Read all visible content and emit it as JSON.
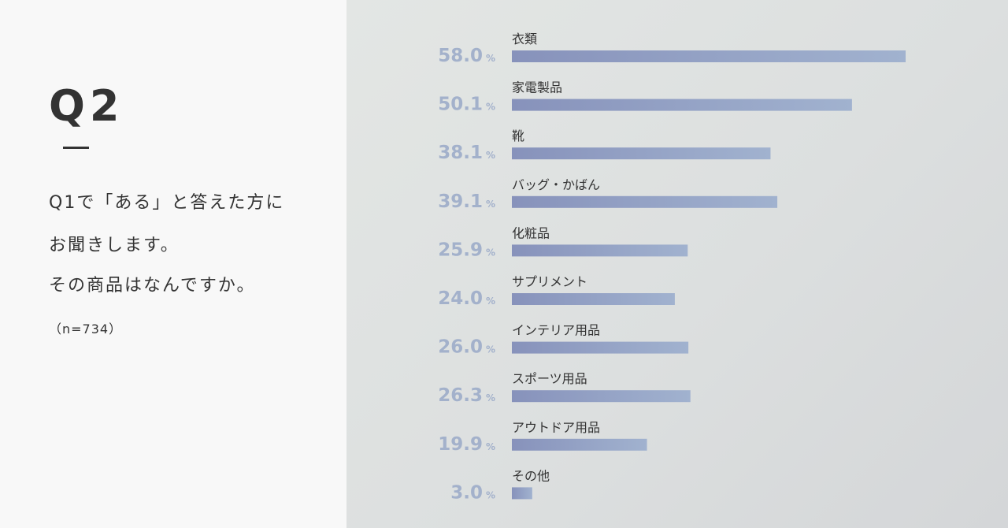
{
  "question": {
    "title": "Q2",
    "line1": "Q1で「ある」と答えた方に",
    "line2": "お聞きします。",
    "line3": "その商品はなんですか。",
    "sample": "（n=734）"
  },
  "colors": {
    "bar_start": "#8792bb",
    "bar_end": "#a1b2cf",
    "value_text": "#a3b1cb"
  },
  "chart_data": {
    "type": "bar",
    "orientation": "horizontal",
    "unit": "%",
    "categories": [
      "衣類",
      "家電製品",
      "靴",
      "バッグ・かばん",
      "化粧品",
      "サプリメント",
      "インテリア用品",
      "スポーツ用品",
      "アウトドア用品",
      "その他"
    ],
    "values": [
      58.0,
      50.1,
      38.1,
      39.1,
      25.9,
      24.0,
      26.0,
      26.3,
      19.9,
      3.0
    ],
    "value_labels": [
      "58.0",
      "50.1",
      "38.1",
      "39.1",
      "25.9",
      "24.0",
      "26.0",
      "26.3",
      "19.9",
      "3.0"
    ],
    "xlim": [
      0,
      58.0
    ],
    "grid": false,
    "legend": "none"
  }
}
